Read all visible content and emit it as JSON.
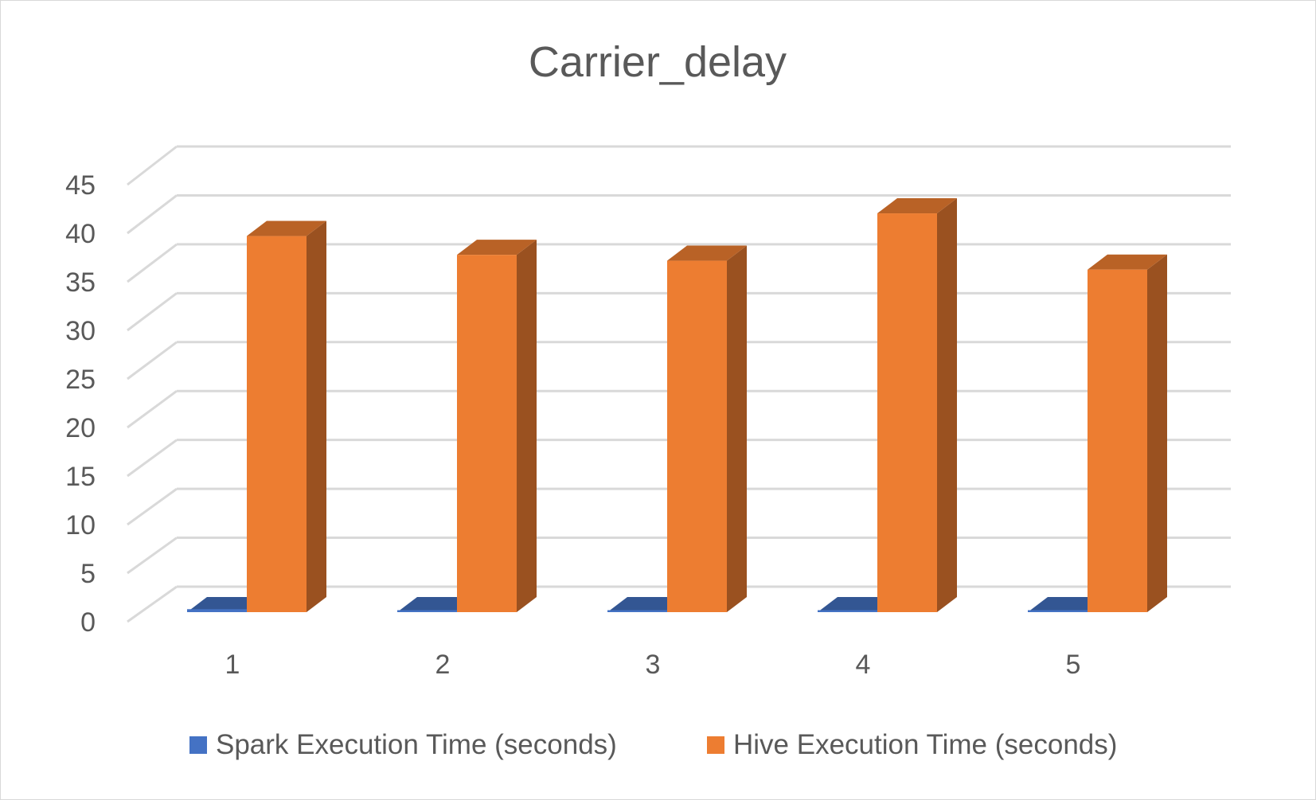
{
  "chart_data": {
    "type": "bar",
    "title": "Carrier_delay",
    "categories": [
      "1",
      "2",
      "3",
      "4",
      "5"
    ],
    "series": [
      {
        "name": "Spark Execution Time (seconds)",
        "values": [
          0.3,
          0.2,
          0.2,
          0.2,
          0.2
        ],
        "color": "#4472c4"
      },
      {
        "name": "Hive Execution Time (seconds)",
        "values": [
          38.1,
          36.2,
          35.6,
          40.4,
          34.7
        ],
        "color": "#ed7d31"
      }
    ],
    "yticks": [
      "0",
      "5",
      "10",
      "15",
      "20",
      "25",
      "30",
      "35",
      "40",
      "45"
    ],
    "ylim": [
      0,
      45
    ],
    "grid": true,
    "legend_position": "bottom",
    "style": "3d-clustered-column"
  }
}
